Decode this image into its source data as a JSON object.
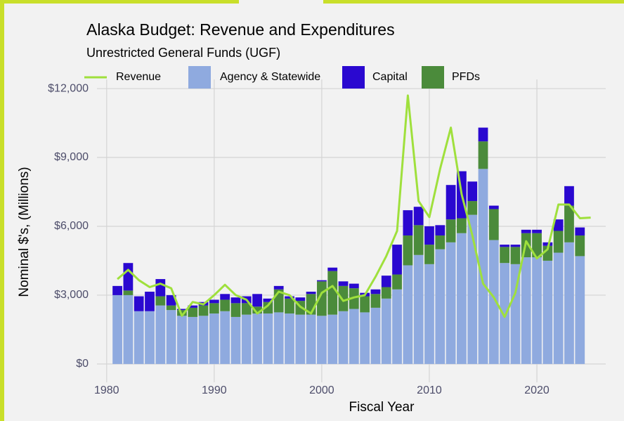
{
  "chart_data": {
    "type": "bar",
    "title": "Alaska Budget: Revenue and Expenditures",
    "subtitle": "Unrestricted General Funds (UGF)",
    "x_label": "Fiscal Year",
    "y_label": "Nominal $'s, (Millions)",
    "stacked": true,
    "grid": true,
    "legend": "top",
    "x": [
      1981,
      1982,
      1983,
      1984,
      1985,
      1986,
      1987,
      1988,
      1989,
      1990,
      1991,
      1992,
      1993,
      1994,
      1995,
      1996,
      1997,
      1998,
      1999,
      2000,
      2001,
      2002,
      2003,
      2004,
      2005,
      2006,
      2007,
      2008,
      2009,
      2010,
      2011,
      2012,
      2013,
      2014,
      2015,
      2016,
      2017,
      2018,
      2019,
      2020,
      2021,
      2022,
      2023,
      2024,
      2025
    ],
    "series": [
      {
        "name": "Revenue",
        "type": "line",
        "color": "#9fe03c",
        "values": [
          3700,
          4100,
          3650,
          3350,
          3500,
          3300,
          2100,
          2700,
          2600,
          3000,
          3450,
          3000,
          2800,
          2200,
          2550,
          3150,
          3000,
          2500,
          2200,
          3100,
          3400,
          2750,
          2900,
          3000,
          3800,
          4700,
          5800,
          11700,
          7100,
          6400,
          8500,
          10300,
          7400,
          5600,
          3500,
          2900,
          2050,
          3100,
          5350,
          4600,
          5000,
          6950,
          6950,
          6350,
          6380
        ]
      },
      {
        "name": "Agency & Statewide",
        "type": "bar",
        "color": "#8faadf",
        "values": [
          3000,
          3000,
          2300,
          2300,
          2550,
          2350,
          2100,
          2050,
          2100,
          2200,
          2300,
          2050,
          2150,
          2200,
          2200,
          2250,
          2200,
          2150,
          2150,
          2100,
          2150,
          2300,
          2400,
          2250,
          2450,
          2850,
          3250,
          4300,
          4750,
          4350,
          5000,
          5300,
          5700,
          6500,
          8500,
          5400,
          4400,
          4350,
          4650,
          4650,
          4500,
          4850,
          5300,
          4700,
          null
        ]
      },
      {
        "name": "Capital",
        "type": "bar",
        "color": "#2a08d0",
        "values": [
          400,
          1200,
          650,
          850,
          750,
          450,
          50,
          100,
          150,
          150,
          250,
          250,
          300,
          550,
          150,
          150,
          100,
          150,
          100,
          50,
          150,
          200,
          200,
          150,
          200,
          500,
          1300,
          1100,
          800,
          800,
          450,
          1500,
          2050,
          850,
          600,
          150,
          100,
          100,
          150,
          150,
          150,
          500,
          850,
          350,
          null
        ]
      },
      {
        "name": "PFDs",
        "type": "bar",
        "color": "#4b8b3b",
        "values": [
          0,
          200,
          0,
          0,
          400,
          200,
          250,
          400,
          450,
          450,
          500,
          600,
          500,
          300,
          500,
          1000,
          650,
          600,
          900,
          1500,
          1900,
          1100,
          900,
          700,
          600,
          500,
          650,
          1300,
          1300,
          850,
          600,
          1000,
          650,
          600,
          1200,
          1350,
          700,
          750,
          1050,
          1050,
          650,
          950,
          1600,
          900,
          null
        ]
      }
    ],
    "xlim": [
      1979.1,
      2026.4
    ],
    "xticks": [
      1980,
      1990,
      2000,
      2010,
      2020
    ],
    "ylim": [
      -800,
      12400
    ],
    "yticks": [
      {
        "value": 0,
        "label": "$0"
      },
      {
        "value": 3000,
        "label": "$3,000"
      },
      {
        "value": 6000,
        "label": "$6,000"
      },
      {
        "value": 9000,
        "label": "$9,000"
      },
      {
        "value": 12000,
        "label": "$12,000"
      }
    ]
  }
}
